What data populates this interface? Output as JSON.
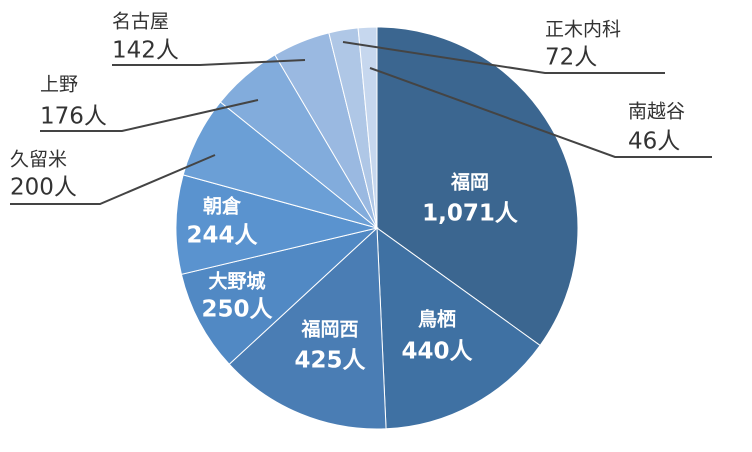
{
  "chart_data": {
    "type": "pie",
    "categories": [
      "福岡",
      "鳥栖",
      "福岡西",
      "大野城",
      "朝倉",
      "久留米",
      "上野",
      "名古屋",
      "正木内科",
      "南越谷"
    ],
    "values": [
      1071,
      440,
      425,
      250,
      244,
      200,
      176,
      142,
      72,
      46
    ],
    "value_labels": [
      "1,071人",
      "440人",
      "425人",
      "250人",
      "244人",
      "200人",
      "176人",
      "142人",
      "72人",
      "46人"
    ],
    "colors": [
      "#3b6690",
      "#3f71a3",
      "#4a7db4",
      "#5189c4",
      "#5a93cf",
      "#6b9fd6",
      "#82acdc",
      "#9ab9e1",
      "#afc7e6",
      "#c6d7ee"
    ]
  }
}
